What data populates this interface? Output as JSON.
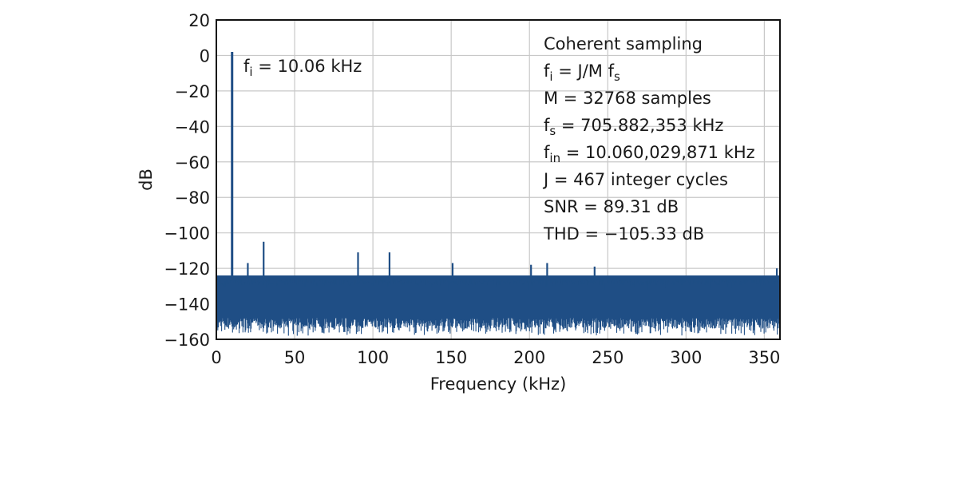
{
  "chart_data": {
    "type": "line",
    "xlabel": "Frequency (kHz)",
    "ylabel": "dB",
    "xlim": [
      0,
      360
    ],
    "ylim": [
      -160,
      20
    ],
    "grid": true,
    "x_ticks": [
      0,
      50,
      100,
      150,
      200,
      250,
      300,
      350
    ],
    "y_ticks": [
      20,
      0,
      -20,
      -40,
      -60,
      -80,
      -100,
      -120,
      -140,
      -160
    ],
    "x_tick_labels": [
      "0",
      "50",
      "100",
      "150",
      "200",
      "250",
      "300",
      "350"
    ],
    "y_tick_labels": [
      "20",
      "0",
      "−20",
      "−40",
      "−60",
      "−80",
      "−100",
      "−120",
      "−140",
      "−160"
    ],
    "series_color": "#1f4e85",
    "noise_floor": {
      "typical_top_db": -126,
      "typical_bottom_db": -152,
      "spike_low_db": -158
    },
    "peaks": [
      {
        "x": 10.06,
        "y": 2
      },
      {
        "x": 20.1,
        "y": -117
      },
      {
        "x": 30.2,
        "y": -105
      },
      {
        "x": 90.5,
        "y": -111
      },
      {
        "x": 110.6,
        "y": -111
      },
      {
        "x": 150.9,
        "y": -117
      },
      {
        "x": 201.0,
        "y": -118
      },
      {
        "x": 211.3,
        "y": -117
      },
      {
        "x": 241.6,
        "y": -119
      },
      {
        "x": 358.0,
        "y": -120
      }
    ],
    "annotations": {
      "peak_label": {
        "sym": "f",
        "sub": "i",
        "rest": " = 10.06 kHz"
      },
      "info_lines": [
        {
          "pre": "Coherent sampling"
        },
        {
          "pre": "f",
          "sub": "i",
          "post": " = J/M f",
          "sub2": "s"
        },
        {
          "pre": "M = 32768 samples"
        },
        {
          "pre": "f",
          "sub": "s",
          "post": " = 705.882,353 kHz"
        },
        {
          "pre": "f",
          "sub": "in",
          "post": " = 10.060,029,871 kHz"
        },
        {
          "pre": "J = 467 integer cycles"
        },
        {
          "pre": "SNR = 89.31 dB"
        },
        {
          "pre": "THD = −105.33 dB"
        }
      ]
    }
  }
}
